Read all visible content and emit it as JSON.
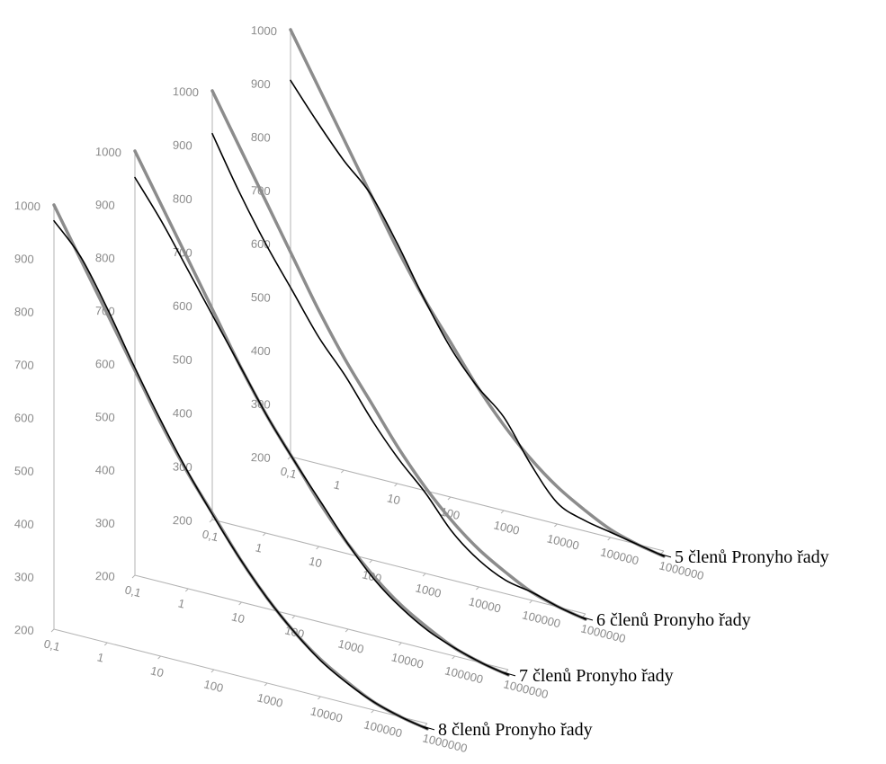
{
  "colors": {
    "axis": "#b3b3b3",
    "tick_text": "#8a8a8a",
    "reference_curve": "#8c8c8c",
    "approximation_curve": "#000000",
    "label_text": "#000000"
  },
  "chart_data": [
    {
      "type": "line",
      "label": "5 členů Pronyho řady",
      "x_scale": "log",
      "x_ticks": [
        "0,1",
        "1",
        "10",
        "100",
        "1000",
        "10000",
        "100000",
        "1000000"
      ],
      "y_ticks": [
        "200",
        "300",
        "400",
        "500",
        "600",
        "700",
        "800",
        "900",
        "1000"
      ],
      "ylim": [
        200,
        1000
      ],
      "x": [
        0.1,
        0.316,
        1,
        3.16,
        10,
        31.6,
        100,
        316,
        1000,
        3162,
        10000,
        31623,
        100000,
        316228,
        1000000
      ],
      "series": [
        {
          "values": [
            1000,
            910,
            820,
            730,
            640,
            560,
            490,
            420,
            360,
            310,
            270,
            240,
            215,
            200,
            190
          ]
        },
        {
          "values": [
            905,
            840,
            780,
            730,
            650,
            560,
            480,
            420,
            375,
            300,
            240,
            220,
            210,
            200,
            190
          ]
        }
      ]
    },
    {
      "type": "line",
      "label": "6 členů Pronyho řady",
      "x_scale": "log",
      "x_ticks": [
        "0,1",
        "1",
        "10",
        "100",
        "1000",
        "10000",
        "100000",
        "1000000"
      ],
      "y_ticks": [
        "200",
        "300",
        "400",
        "500",
        "600",
        "700",
        "800",
        "900",
        "1000"
      ],
      "ylim": [
        200,
        1000
      ],
      "x": [
        0.1,
        0.316,
        1,
        3.16,
        10,
        31.6,
        100,
        316,
        1000,
        3162,
        10000,
        31623,
        100000,
        316228,
        1000000
      ],
      "series": [
        {
          "values": [
            1000,
            910,
            820,
            730,
            640,
            560,
            490,
            420,
            360,
            310,
            270,
            240,
            215,
            200,
            190
          ]
        },
        {
          "values": [
            920,
            825,
            740,
            665,
            590,
            530,
            460,
            400,
            350,
            290,
            250,
            225,
            215,
            200,
            190
          ]
        }
      ]
    },
    {
      "type": "line",
      "label": "7 členů Pronyho řady",
      "x_scale": "log",
      "x_ticks": [
        "0,1",
        "1",
        "10",
        "100",
        "1000",
        "10000",
        "100000",
        "1000000"
      ],
      "y_ticks": [
        "200",
        "300",
        "400",
        "500",
        "600",
        "700",
        "800",
        "900",
        "1000"
      ],
      "ylim": [
        200,
        1000
      ],
      "x": [
        0.1,
        0.316,
        1,
        3.16,
        10,
        31.6,
        100,
        316,
        1000,
        3162,
        10000,
        31623,
        100000,
        316228,
        1000000
      ],
      "series": [
        {
          "values": [
            1000,
            910,
            820,
            730,
            640,
            560,
            490,
            420,
            360,
            310,
            270,
            240,
            215,
            200,
            190
          ]
        },
        {
          "values": [
            950,
            880,
            800,
            720,
            640,
            560,
            490,
            425,
            360,
            305,
            265,
            235,
            215,
            200,
            190
          ]
        }
      ]
    },
    {
      "type": "line",
      "label": "8 členů Pronyho řady",
      "x_scale": "log",
      "x_ticks": [
        "0,1",
        "1",
        "10",
        "100",
        "1000",
        "10000",
        "100000",
        "1000000"
      ],
      "y_ticks": [
        "200",
        "300",
        "400",
        "500",
        "600",
        "700",
        "800",
        "900",
        "1000"
      ],
      "ylim": [
        200,
        1000
      ],
      "x": [
        0.1,
        0.316,
        1,
        3.16,
        10,
        31.6,
        100,
        316,
        1000,
        3162,
        10000,
        31623,
        100000,
        316228,
        1000000
      ],
      "series": [
        {
          "values": [
            1000,
            910,
            820,
            730,
            640,
            560,
            490,
            420,
            360,
            310,
            270,
            240,
            215,
            200,
            190
          ]
        },
        {
          "values": [
            970,
            915,
            830,
            735,
            645,
            562,
            488,
            420,
            360,
            310,
            268,
            238,
            215,
            200,
            190
          ]
        }
      ]
    }
  ]
}
